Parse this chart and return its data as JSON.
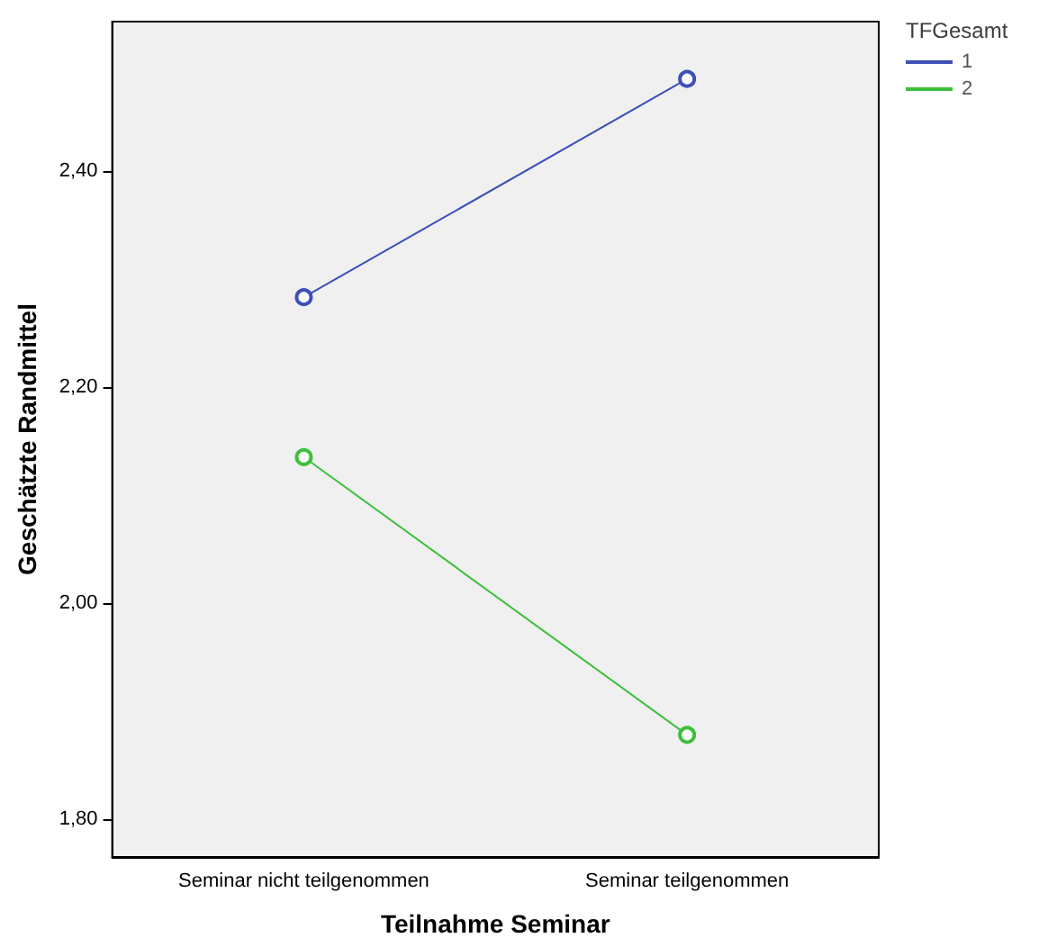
{
  "chart_data": {
    "type": "line",
    "xlabel": "Teilnahme Seminar",
    "ylabel": "Geschätzte Randmittel",
    "legend_title": "TFGesamt",
    "categories": [
      "Seminar nicht teilgenommen",
      "Seminar teilgenommen"
    ],
    "series": [
      {
        "name": "1",
        "color": "#3e4fb8",
        "values": [
          2.283,
          2.485
        ]
      },
      {
        "name": "2",
        "color": "#3cbf3c",
        "values": [
          2.135,
          1.878
        ]
      }
    ],
    "ylim": [
      1.765,
      2.538
    ],
    "yticks": [
      {
        "value": 1.8,
        "label": "1,80"
      },
      {
        "value": 2.0,
        "label": "2,00"
      },
      {
        "value": 2.2,
        "label": "2,20"
      },
      {
        "value": 2.4,
        "label": "2,40"
      }
    ],
    "grid": false,
    "legend": "top right",
    "marker": "circle",
    "line_style": "solid"
  }
}
